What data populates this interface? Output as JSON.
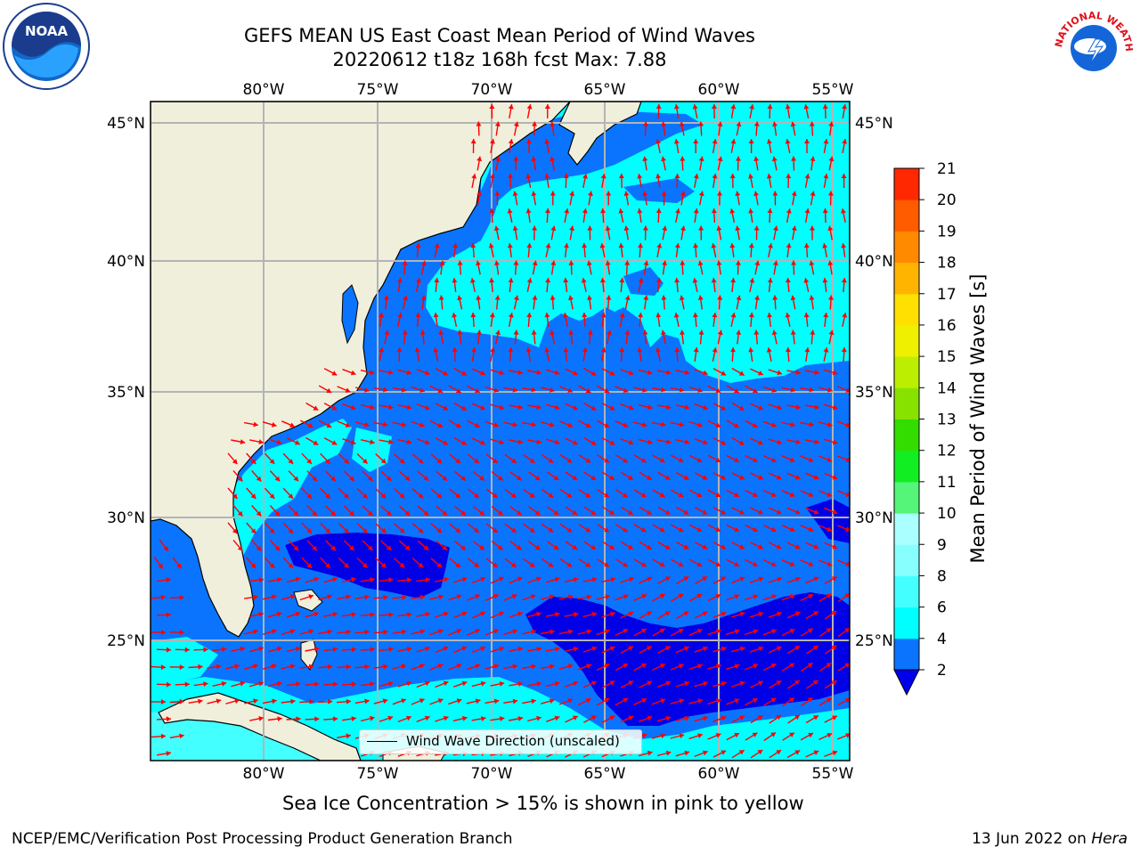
{
  "title_line1": "GEFS MEAN US East Coast Mean Period of Wind Waves",
  "title_line2": "20220612 t18z 168h fcst   Max: 7.88",
  "subcaption": "Sea Ice Concentration > 15% is shown in pink to yellow",
  "footer_left": "NCEP/EMC/Verification Post Processing Product Generation Branch",
  "footer_right_date": "13 Jun 2022 on ",
  "footer_right_host": "Hera",
  "legend_label": "Wind Wave Direction (unscaled)",
  "colorbar": {
    "label": "Mean Period of Wind Waves [s]",
    "ticks": [
      "2",
      "4",
      "6",
      "8",
      "9",
      "10",
      "11",
      "12",
      "13",
      "14",
      "15",
      "16",
      "17",
      "18",
      "19",
      "20",
      "21"
    ],
    "colors": [
      "#0a74ff",
      "#00ffff",
      "#44ffff",
      "#88ffff",
      "#aaffff",
      "#55f57a",
      "#11ee22",
      "#33dd00",
      "#88e200",
      "#bbee00",
      "#eef000",
      "#ffe000",
      "#ffb400",
      "#ff8a00",
      "#ff5c00",
      "#ff2800",
      "#ff0000"
    ],
    "under_color": "#0000ee"
  },
  "map": {
    "lon_labels": [
      "80°W",
      "75°W",
      "70°W",
      "65°W",
      "60°W",
      "55°W"
    ],
    "lat_labels": [
      "45°N",
      "40°N",
      "35°N",
      "30°N",
      "25°N"
    ],
    "land_color": "#efefdc",
    "ocean_colors": {
      "deep_blue": "#0000e6",
      "blue": "#0a74ff",
      "cyan": "#00ffff",
      "light_cyan": "#44ffff"
    },
    "arrow_color": "#ff0000"
  },
  "logos": {
    "noaa": "NOAA",
    "nws": "NATIONAL WEATHER SERVICE"
  }
}
